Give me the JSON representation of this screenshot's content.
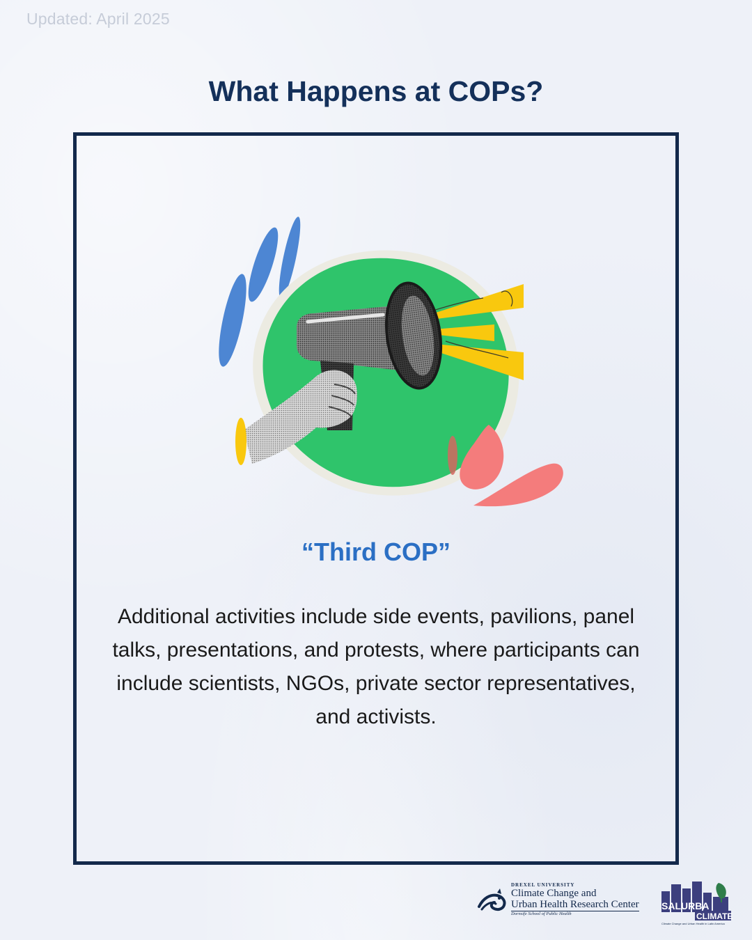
{
  "header": {
    "updated": "Updated: April 2025",
    "title": "What Happens at COPs?"
  },
  "card": {
    "illustration_icon": "megaphone-icon",
    "subtitle": "“Third COP”",
    "body": "Additional activities include side events, pavilions, panel talks, presentations, and protests, where participants can include scientists, NGOs, private sector representatives, and activists."
  },
  "footer": {
    "drexel": {
      "university": "DREXEL UNIVERSITY",
      "center_line1": "Climate Change and",
      "center_line2": "Urban Health Research Center",
      "school": "Dornsife School of Public Health"
    },
    "salurba": {
      "name": "SALURBA",
      "name2": "CLIMATE",
      "tagline": "Climate Change and Urban Health in Latin America"
    }
  },
  "colors": {
    "navy": "#13294b",
    "accent_blue": "#2b6fc4",
    "green": "#2fc46b",
    "yellow": "#f9c80e",
    "coral": "#f47c7c",
    "background": "#eef1f8"
  }
}
